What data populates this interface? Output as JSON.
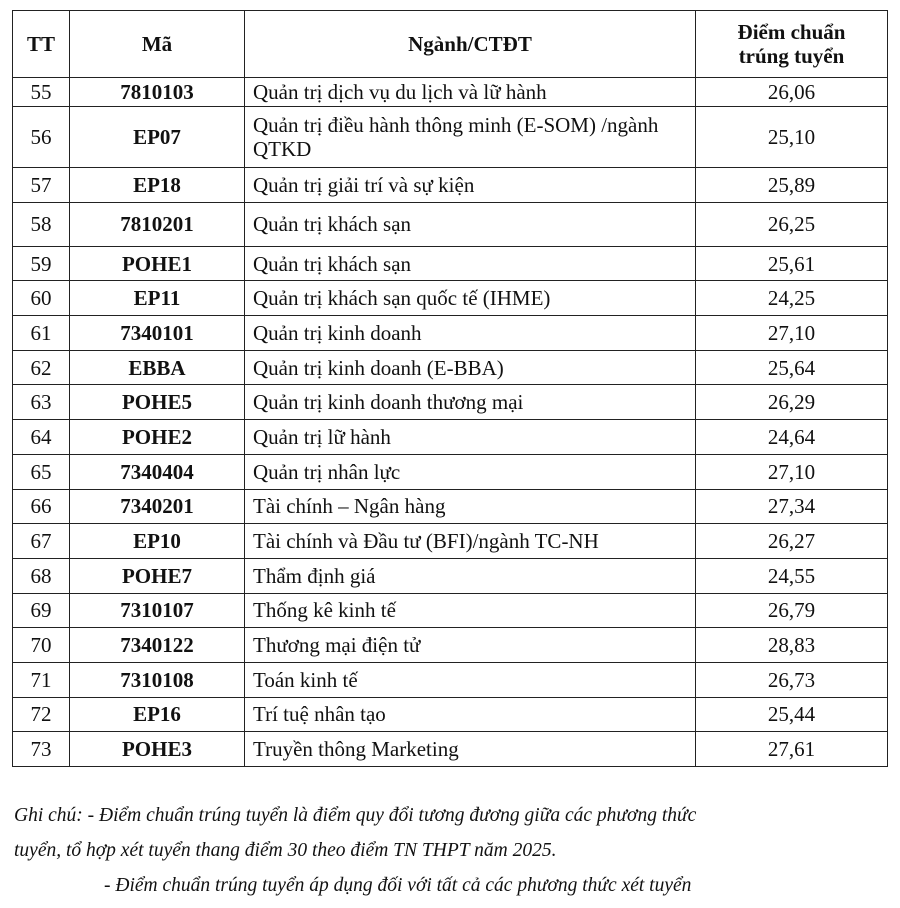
{
  "table": {
    "headers": [
      "TT",
      "Mã",
      "Ngành/CTĐT",
      "Điểm chuẩn trúng tuyển"
    ],
    "rows": [
      {
        "tt": "55",
        "ma": "7810103",
        "nganh": "Quản trị dịch vụ du lịch và lữ hành",
        "diem": "26,06"
      },
      {
        "tt": "56",
        "ma": "EP07",
        "nganh": "Quản trị điều hành thông minh (E-SOM) /ngành QTKD",
        "diem": "25,10"
      },
      {
        "tt": "57",
        "ma": "EP18",
        "nganh": "Quản trị giải trí và sự kiện",
        "diem": "25,89"
      },
      {
        "tt": "58",
        "ma": "7810201",
        "nganh": "Quản trị khách sạn",
        "diem": "26,25"
      },
      {
        "tt": "59",
        "ma": "POHE1",
        "nganh": "Quản trị khách sạn",
        "diem": "25,61"
      },
      {
        "tt": "60",
        "ma": "EP11",
        "nganh": "Quản trị khách sạn quốc tế (IHME)",
        "diem": "24,25"
      },
      {
        "tt": "61",
        "ma": "7340101",
        "nganh": "Quản trị kinh doanh",
        "diem": "27,10"
      },
      {
        "tt": "62",
        "ma": "EBBA",
        "nganh": "Quản trị kinh doanh (E-BBA)",
        "diem": "25,64"
      },
      {
        "tt": "63",
        "ma": "POHE5",
        "nganh": "Quản trị kinh doanh thương mại",
        "diem": "26,29"
      },
      {
        "tt": "64",
        "ma": "POHE2",
        "nganh": "Quản trị lữ hành",
        "diem": "24,64"
      },
      {
        "tt": "65",
        "ma": "7340404",
        "nganh": "Quản trị nhân lực",
        "diem": "27,10"
      },
      {
        "tt": "66",
        "ma": "7340201",
        "nganh": "Tài chính – Ngân hàng",
        "diem": "27,34"
      },
      {
        "tt": "67",
        "ma": "EP10",
        "nganh": "Tài chính và Đầu tư (BFI)/ngành TC-NH",
        "diem": "26,27"
      },
      {
        "tt": "68",
        "ma": "POHE7",
        "nganh": "Thẩm định giá",
        "diem": "24,55"
      },
      {
        "tt": "69",
        "ma": "7310107",
        "nganh": "Thống kê kinh tế",
        "diem": "26,79"
      },
      {
        "tt": "70",
        "ma": "7340122",
        "nganh": "Thương mại điện tử",
        "diem": "28,83"
      },
      {
        "tt": "71",
        "ma": "7310108",
        "nganh": "Toán kinh tế",
        "diem": "26,73"
      },
      {
        "tt": "72",
        "ma": "EP16",
        "nganh": "Trí tuệ nhân tạo",
        "diem": "25,44"
      },
      {
        "tt": "73",
        "ma": "POHE3",
        "nganh": "Truyền thông Marketing",
        "diem": "27,61"
      }
    ]
  },
  "notes": {
    "line1": "Ghi chú: - Điểm chuẩn trúng tuyển là điểm quy đổi tương đương giữa các phương thức",
    "line2": "tuyển, tổ hợp xét tuyển thang điểm 30 theo điểm TN THPT năm 2025.",
    "line3": "- Điểm chuẩn trúng tuyển áp dụng đối với tất cả các phương thức xét tuyển"
  }
}
